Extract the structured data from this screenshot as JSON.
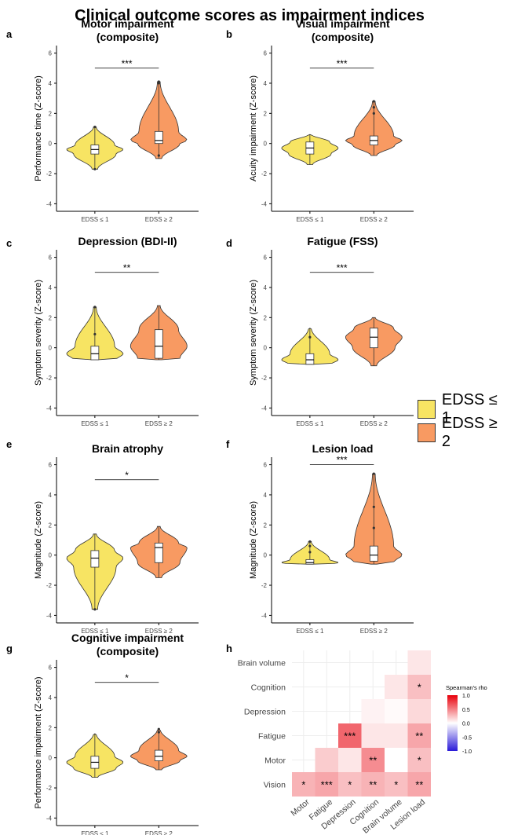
{
  "figure_title": "Clinical outcome scores as impairment indices",
  "colors": {
    "low": "#f7e463",
    "high": "#f89a62",
    "pos": "#e8000b",
    "neg": "#2a1ad8"
  },
  "legend": [
    {
      "label": "EDSS ≤ 1",
      "color": "#f7e463"
    },
    {
      "label": "EDSS ≥ 2",
      "color": "#f89a62"
    }
  ],
  "chart_data": [
    {
      "type": "violin",
      "panel": "a",
      "title": [
        "Motor impairment",
        "(composite)"
      ],
      "ylabel": "Performance time (Z-score)",
      "categories": [
        "EDSS ≤ 1",
        "EDSS ≥ 2"
      ],
      "ylim": [
        -4.5,
        6.5
      ],
      "yticks": [
        -4,
        -2,
        0,
        2,
        4,
        6
      ],
      "significance": "***",
      "groups": [
        {
          "min": -1.7,
          "q1": -0.7,
          "median": -0.4,
          "q3": -0.1,
          "max": 1.1,
          "outliers": [
            -1.7,
            1.1
          ]
        },
        {
          "min": -1.0,
          "q1": 0.0,
          "median": 0.2,
          "q3": 0.8,
          "max": 4.1,
          "outliers": [
            -0.8,
            4.0,
            4.1
          ]
        }
      ]
    },
    {
      "type": "violin",
      "panel": "b",
      "title": [
        "Visual impairment",
        "(composite)"
      ],
      "ylabel": "Acuity impairment (Z-score)",
      "categories": [
        "EDSS ≤ 1",
        "EDSS ≥ 2"
      ],
      "ylim": [
        -4.5,
        6.5
      ],
      "yticks": [
        -4,
        -2,
        0,
        2,
        4,
        6
      ],
      "significance": "***",
      "groups": [
        {
          "min": -1.4,
          "q1": -0.7,
          "median": -0.3,
          "q3": 0.1,
          "max": 0.6,
          "outliers": []
        },
        {
          "min": -0.8,
          "q1": -0.1,
          "median": 0.2,
          "q3": 0.5,
          "max": 2.8,
          "outliers": [
            2.0,
            2.4,
            2.8
          ]
        }
      ]
    },
    {
      "type": "violin",
      "panel": "c",
      "title": [
        "Depression (BDI-II)"
      ],
      "ylabel": "Symptom severity (Z-score)",
      "categories": [
        "EDSS ≤ 1",
        "EDSS ≥ 2"
      ],
      "ylim": [
        -4.5,
        6.5
      ],
      "yticks": [
        -4,
        -2,
        0,
        2,
        4,
        6
      ],
      "significance": "**",
      "groups": [
        {
          "min": -0.8,
          "q1": -0.8,
          "median": -0.4,
          "q3": 0.1,
          "max": 2.7,
          "outliers": [
            0.9,
            2.7
          ]
        },
        {
          "min": -0.8,
          "q1": -0.7,
          "median": 0.1,
          "q3": 1.2,
          "max": 2.8,
          "outliers": []
        }
      ]
    },
    {
      "type": "violin",
      "panel": "d",
      "title": [
        "Fatigue (FSS)"
      ],
      "ylabel": "Symptom severity (Z-score)",
      "categories": [
        "EDSS ≤ 1",
        "EDSS ≥ 2"
      ],
      "ylim": [
        -4.5,
        6.5
      ],
      "yticks": [
        -4,
        -2,
        0,
        2,
        4,
        6
      ],
      "significance": "***",
      "groups": [
        {
          "min": -1.1,
          "q1": -1.1,
          "median": -0.8,
          "q3": -0.4,
          "max": 1.3,
          "outliers": [
            0.7
          ]
        },
        {
          "min": -1.2,
          "q1": 0.0,
          "median": 0.7,
          "q3": 1.3,
          "max": 2.0,
          "outliers": []
        }
      ]
    },
    {
      "type": "violin",
      "panel": "e",
      "title": [
        "Brain atrophy"
      ],
      "ylabel": "Magnitude (Z-score)",
      "categories": [
        "EDSS ≤ 1",
        "EDSS ≥ 2"
      ],
      "ylim": [
        -4.5,
        6.5
      ],
      "yticks": [
        -4,
        -2,
        0,
        2,
        4,
        6
      ],
      "significance": "*",
      "groups": [
        {
          "min": -3.6,
          "q1": -0.8,
          "median": -0.2,
          "q3": 0.3,
          "max": 1.4,
          "outliers": [
            -3.6
          ]
        },
        {
          "min": -1.5,
          "q1": -0.5,
          "median": 0.5,
          "q3": 0.8,
          "max": 1.9,
          "outliers": []
        }
      ]
    },
    {
      "type": "violin",
      "panel": "f",
      "title": [
        "Lesion load"
      ],
      "ylabel": "Magnitude (Z-score)",
      "categories": [
        "EDSS ≤ 1",
        "EDSS ≥ 2"
      ],
      "ylim": [
        -4.5,
        6.5
      ],
      "yticks": [
        -4,
        -2,
        0,
        2,
        4,
        6
      ],
      "significance": "***",
      "groups": [
        {
          "min": -0.6,
          "q1": -0.6,
          "median": -0.5,
          "q3": -0.3,
          "max": 0.9,
          "outliers": [
            0.2,
            0.6,
            0.9
          ]
        },
        {
          "min": -0.6,
          "q1": -0.4,
          "median": 0.0,
          "q3": 0.6,
          "max": 5.4,
          "outliers": [
            1.8,
            3.2,
            5.4
          ]
        }
      ]
    },
    {
      "type": "violin",
      "panel": "g",
      "title": [
        "Cognitive impairment",
        "(composite)"
      ],
      "ylabel": "Performance impairment (Z-score)",
      "categories": [
        "EDSS ≤ 1",
        "EDSS ≥ 2"
      ],
      "ylim": [
        -4.5,
        6.5
      ],
      "yticks": [
        -4,
        -2,
        0,
        2,
        4,
        6
      ],
      "significance": "*",
      "groups": [
        {
          "min": -1.3,
          "q1": -0.7,
          "median": -0.3,
          "q3": 0.1,
          "max": 1.6,
          "outliers": []
        },
        {
          "min": -0.8,
          "q1": -0.2,
          "median": 0.1,
          "q3": 0.5,
          "max": 1.9,
          "outliers": [
            1.7,
            1.9
          ]
        }
      ]
    },
    {
      "type": "heatmap",
      "panel": "h",
      "x": [
        "Motor",
        "Fatigue",
        "Depression",
        "Cognition",
        "Brain volume",
        "Lesion load"
      ],
      "y": [
        "Vision",
        "Motor",
        "Fatigue",
        "Depression",
        "Cognition",
        "Brain volume"
      ],
      "legend_title": "Spearman's rho",
      "legend_ticks": [
        "1.0",
        "0.5",
        "0.0",
        "-0.5",
        "-1.0"
      ],
      "cells": [
        {
          "row": "Vision",
          "col": "Motor",
          "rho": 0.3,
          "sig": "*"
        },
        {
          "row": "Vision",
          "col": "Fatigue",
          "rho": 0.35,
          "sig": "***"
        },
        {
          "row": "Vision",
          "col": "Depression",
          "rho": 0.25,
          "sig": "*"
        },
        {
          "row": "Vision",
          "col": "Cognition",
          "rho": 0.3,
          "sig": "**"
        },
        {
          "row": "Vision",
          "col": "Brain volume",
          "rho": 0.25,
          "sig": "*"
        },
        {
          "row": "Vision",
          "col": "Lesion load",
          "rho": 0.35,
          "sig": "**"
        },
        {
          "row": "Motor",
          "col": "Fatigue",
          "rho": 0.2,
          "sig": ""
        },
        {
          "row": "Motor",
          "col": "Depression",
          "rho": 0.1,
          "sig": ""
        },
        {
          "row": "Motor",
          "col": "Cognition",
          "rho": 0.45,
          "sig": "**"
        },
        {
          "row": "Motor",
          "col": "Brain volume",
          "rho": 0.0,
          "sig": ""
        },
        {
          "row": "Motor",
          "col": "Lesion load",
          "rho": 0.25,
          "sig": "*"
        },
        {
          "row": "Fatigue",
          "col": "Depression",
          "rho": 0.6,
          "sig": "***"
        },
        {
          "row": "Fatigue",
          "col": "Cognition",
          "rho": 0.1,
          "sig": ""
        },
        {
          "row": "Fatigue",
          "col": "Brain volume",
          "rho": 0.1,
          "sig": ""
        },
        {
          "row": "Fatigue",
          "col": "Lesion load",
          "rho": 0.35,
          "sig": "**"
        },
        {
          "row": "Depression",
          "col": "Cognition",
          "rho": 0.05,
          "sig": ""
        },
        {
          "row": "Depression",
          "col": "Brain volume",
          "rho": 0.02,
          "sig": ""
        },
        {
          "row": "Depression",
          "col": "Lesion load",
          "rho": 0.15,
          "sig": ""
        },
        {
          "row": "Cognition",
          "col": "Brain volume",
          "rho": 0.1,
          "sig": ""
        },
        {
          "row": "Cognition",
          "col": "Lesion load",
          "rho": 0.25,
          "sig": "*"
        },
        {
          "row": "Brain volume",
          "col": "Lesion load",
          "rho": 0.1,
          "sig": ""
        }
      ]
    }
  ]
}
